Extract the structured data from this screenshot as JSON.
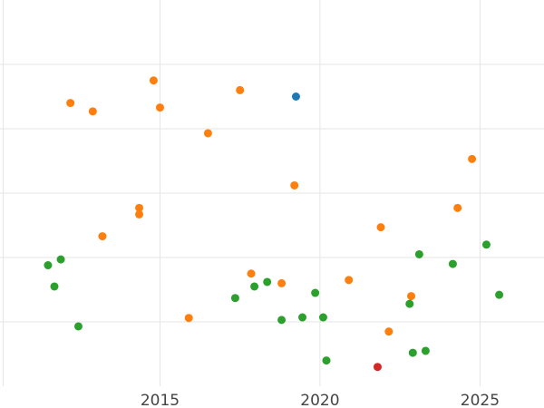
{
  "chart_data": {
    "type": "scatter",
    "title": "",
    "xlabel": "",
    "ylabel": "",
    "xlim": [
      2010,
      2027
    ],
    "ylim": [
      0,
      6
    ],
    "xticks": [
      2015,
      2020,
      2025
    ],
    "xtick_labels": [
      "2015",
      "2020",
      "2025"
    ],
    "yticks": [
      1,
      2,
      3,
      4,
      5
    ],
    "grid": true,
    "legend": "none",
    "series": [
      {
        "color": "#ff7f0e",
        "points": [
          {
            "x": 2012.2,
            "y": 4.4
          },
          {
            "x": 2012.9,
            "y": 4.27
          },
          {
            "x": 2014.8,
            "y": 4.75
          },
          {
            "x": 2015.0,
            "y": 4.33
          },
          {
            "x": 2017.5,
            "y": 4.6
          },
          {
            "x": 2016.5,
            "y": 3.93
          },
          {
            "x": 2019.2,
            "y": 3.12
          },
          {
            "x": 2024.75,
            "y": 3.53
          },
          {
            "x": 2014.35,
            "y": 2.77
          },
          {
            "x": 2014.35,
            "y": 2.67
          },
          {
            "x": 2013.2,
            "y": 2.33
          },
          {
            "x": 2021.9,
            "y": 2.47
          },
          {
            "x": 2024.3,
            "y": 2.77
          },
          {
            "x": 2017.85,
            "y": 1.75
          },
          {
            "x": 2018.8,
            "y": 1.6
          },
          {
            "x": 2020.9,
            "y": 1.65
          },
          {
            "x": 2022.85,
            "y": 1.4
          },
          {
            "x": 2015.9,
            "y": 1.06
          },
          {
            "x": 2022.15,
            "y": 0.85
          }
        ]
      },
      {
        "color": "#1f77b4",
        "points": [
          {
            "x": 2019.25,
            "y": 4.5
          }
        ]
      },
      {
        "color": "#2ca02c",
        "points": [
          {
            "x": 2011.5,
            "y": 1.88
          },
          {
            "x": 2011.9,
            "y": 1.97
          },
          {
            "x": 2011.7,
            "y": 1.55
          },
          {
            "x": 2012.45,
            "y": 0.93
          },
          {
            "x": 2017.35,
            "y": 1.37
          },
          {
            "x": 2017.95,
            "y": 1.55
          },
          {
            "x": 2018.35,
            "y": 1.62
          },
          {
            "x": 2019.85,
            "y": 1.45
          },
          {
            "x": 2018.8,
            "y": 1.03
          },
          {
            "x": 2019.45,
            "y": 1.07
          },
          {
            "x": 2020.1,
            "y": 1.07
          },
          {
            "x": 2020.2,
            "y": 0.4
          },
          {
            "x": 2022.8,
            "y": 1.28
          },
          {
            "x": 2022.9,
            "y": 0.52
          },
          {
            "x": 2023.3,
            "y": 0.55
          },
          {
            "x": 2023.1,
            "y": 2.05
          },
          {
            "x": 2024.15,
            "y": 1.9
          },
          {
            "x": 2025.2,
            "y": 2.2
          },
          {
            "x": 2025.6,
            "y": 1.42
          }
        ]
      },
      {
        "color": "#d62728",
        "points": [
          {
            "x": 2021.8,
            "y": 0.3
          }
        ]
      }
    ]
  }
}
